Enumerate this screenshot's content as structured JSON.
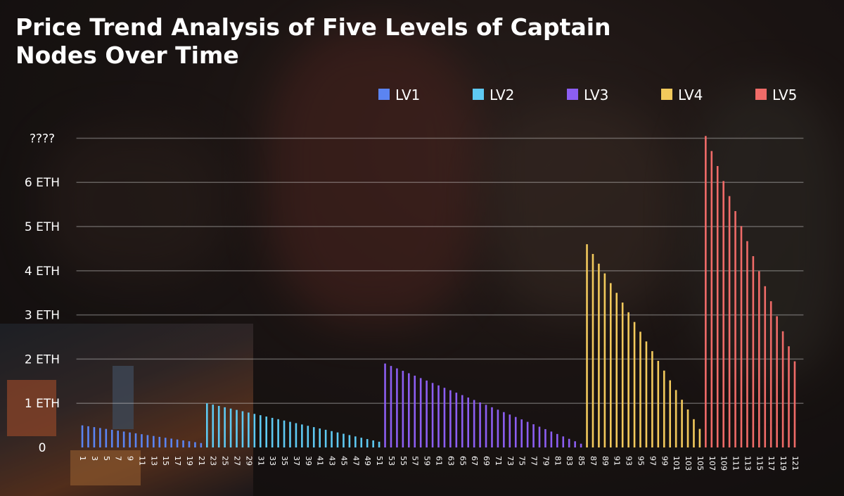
{
  "chart_data": {
    "type": "bar",
    "title": [
      "Price Trend Analysis of Five Levels of Captain",
      "Nodes Over Time"
    ],
    "xlim": [
      0,
      122
    ],
    "xticks": [
      1,
      3,
      5,
      7,
      9,
      11,
      13,
      15,
      17,
      19,
      21,
      23,
      25,
      27,
      29,
      31,
      33,
      35,
      37,
      39,
      41,
      43,
      45,
      47,
      49,
      51,
      53,
      55,
      57,
      59,
      61,
      63,
      65,
      67,
      69,
      71,
      73,
      75,
      77,
      79,
      81,
      83,
      85,
      87,
      89,
      91,
      93,
      95,
      97,
      99,
      101,
      103,
      105,
      107,
      109,
      111,
      113,
      115,
      117,
      119,
      121
    ],
    "ylim": [
      0,
      7.3
    ],
    "yticks": [
      0,
      {
        "value": 1,
        "label": "1 ETH"
      },
      {
        "value": 2,
        "label": "2 ETH"
      },
      {
        "value": 3,
        "label": "3 ETH"
      },
      {
        "value": 4,
        "label": "4 ETH"
      },
      {
        "value": 5,
        "label": "5 ETH"
      },
      {
        "value": 6,
        "label": "6 ETH"
      },
      {
        "value": 7,
        "label": "????"
      }
    ],
    "grid": true,
    "legend": "top-right",
    "series": [
      {
        "name": "LV1",
        "color": "#5b84f2",
        "x": [
          1,
          2,
          3,
          4,
          5,
          6,
          7,
          8,
          9,
          10,
          11,
          12,
          13,
          14,
          15,
          16,
          17,
          18,
          19,
          20,
          21
        ],
        "values": [
          0.5,
          0.48,
          0.46,
          0.44,
          0.42,
          0.4,
          0.38,
          0.36,
          0.34,
          0.32,
          0.3,
          0.28,
          0.26,
          0.24,
          0.22,
          0.2,
          0.18,
          0.16,
          0.14,
          0.12,
          0.1
        ]
      },
      {
        "name": "LV2",
        "color": "#5ec9f2",
        "x": [
          22,
          23,
          24,
          25,
          26,
          27,
          28,
          29,
          30,
          31,
          32,
          33,
          34,
          35,
          36,
          37,
          38,
          39,
          40,
          41,
          42,
          43,
          44,
          45,
          46,
          47,
          48,
          49,
          50,
          51
        ],
        "values": [
          1.0,
          0.97,
          0.94,
          0.91,
          0.88,
          0.85,
          0.82,
          0.79,
          0.76,
          0.73,
          0.7,
          0.67,
          0.64,
          0.61,
          0.58,
          0.55,
          0.52,
          0.49,
          0.46,
          0.43,
          0.4,
          0.37,
          0.34,
          0.31,
          0.28,
          0.25,
          0.22,
          0.19,
          0.16,
          0.13
        ]
      },
      {
        "name": "LV3",
        "color": "#8c5ef2",
        "x": [
          52,
          53,
          54,
          55,
          56,
          57,
          58,
          59,
          60,
          61,
          62,
          63,
          64,
          65,
          66,
          67,
          68,
          69,
          70,
          71,
          72,
          73,
          74,
          75,
          76,
          77,
          78,
          79,
          80,
          81,
          82,
          83,
          84,
          85
        ],
        "values": [
          1.9,
          1.845,
          1.79,
          1.735,
          1.68,
          1.625,
          1.57,
          1.515,
          1.46,
          1.405,
          1.35,
          1.295,
          1.24,
          1.185,
          1.13,
          1.075,
          1.02,
          0.965,
          0.91,
          0.855,
          0.8,
          0.745,
          0.69,
          0.635,
          0.58,
          0.525,
          0.47,
          0.415,
          0.36,
          0.305,
          0.25,
          0.195,
          0.14,
          0.085
        ]
      },
      {
        "name": "LV4",
        "color": "#f2c95c",
        "x": [
          86,
          87,
          88,
          89,
          90,
          91,
          92,
          93,
          94,
          95,
          96,
          97,
          98,
          99,
          100,
          101,
          102,
          103,
          104,
          105
        ],
        "values": [
          4.6,
          4.38,
          4.16,
          3.94,
          3.72,
          3.5,
          3.28,
          3.06,
          2.84,
          2.62,
          2.4,
          2.18,
          1.96,
          1.74,
          1.52,
          1.3,
          1.08,
          0.86,
          0.64,
          0.42
        ]
      },
      {
        "name": "LV5",
        "color": "#f06b68",
        "x": [
          106,
          107,
          108,
          109,
          110,
          111,
          112,
          113,
          114,
          115,
          116,
          117,
          118,
          119,
          120,
          121
        ],
        "values": [
          7.05,
          6.71,
          6.37,
          6.03,
          5.69,
          5.35,
          5.01,
          4.67,
          4.33,
          3.99,
          3.65,
          3.31,
          2.97,
          2.63,
          2.29,
          1.95
        ]
      }
    ]
  }
}
